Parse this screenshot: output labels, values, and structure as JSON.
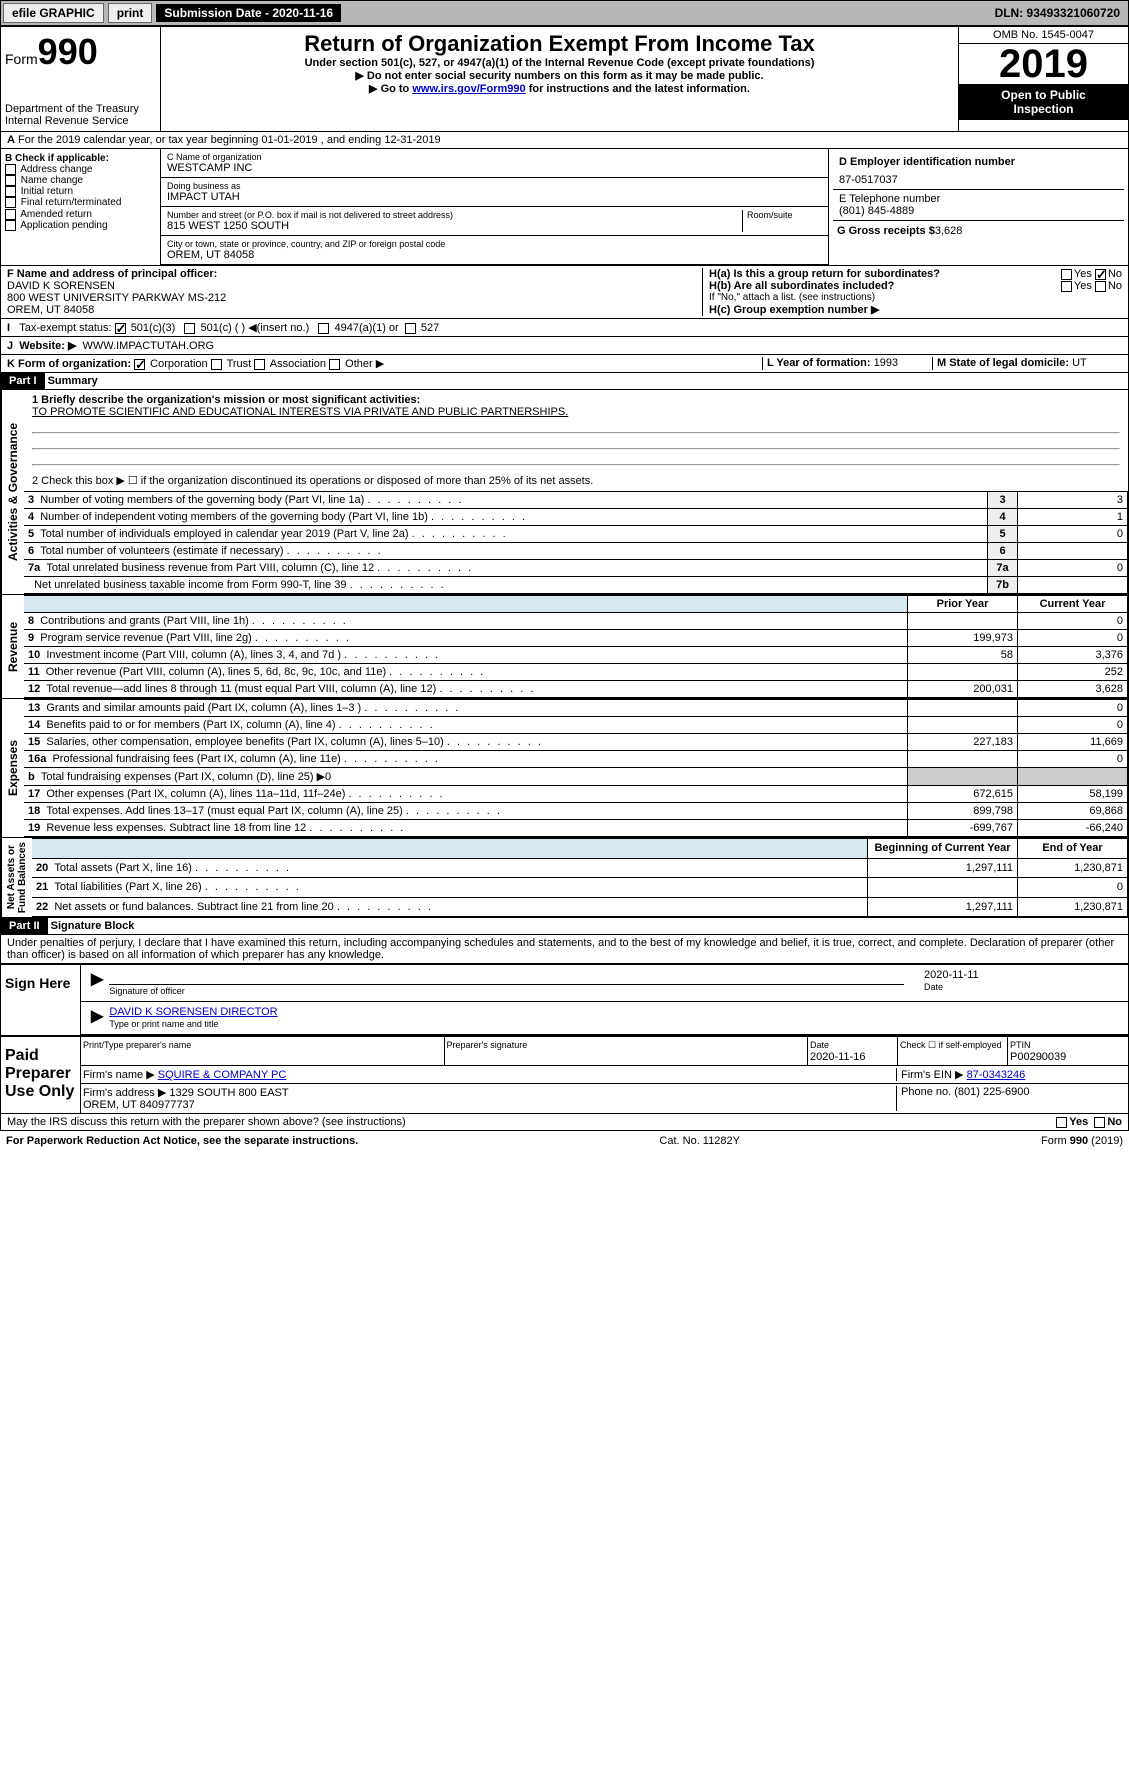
{
  "topbar": {
    "efile": "efile GRAPHIC",
    "print": "print",
    "subdate_label": "Submission Date - 2020-11-16",
    "dln": "DLN: 93493321060720"
  },
  "header": {
    "form": "Form",
    "num": "990",
    "dept": "Department of the Treasury\nInternal Revenue Service",
    "title": "Return of Organization Exempt From Income Tax",
    "sub1": "Under section 501(c), 527, or 4947(a)(1) of the Internal Revenue Code (except private foundations)",
    "sub2": "▶ Do not enter social security numbers on this form as it may be made public.",
    "sub3": "▶ Go to www.irs.gov/Form990 for instructions and the latest information.",
    "omb": "OMB No. 1545-0047",
    "year": "2019",
    "open": "Open to Public",
    "insp": "Inspection"
  },
  "A": {
    "text": "For the 2019 calendar year, or tax year beginning 01-01-2019   , and ending 12-31-2019"
  },
  "B": {
    "label": "B Check if applicable:",
    "items": [
      "Address change",
      "Name change",
      "Initial return",
      "Final return/terminated",
      "Amended return",
      "Application pending"
    ]
  },
  "C": {
    "name_label": "C Name of organization",
    "name": "WESTCAMP INC",
    "dba_label": "Doing business as",
    "dba": "IMPACT UTAH",
    "street_label": "Number and street (or P.O. box if mail is not delivered to street address)",
    "room": "Room/suite",
    "street": "815 WEST 1250 SOUTH",
    "city_label": "City or town, state or province, country, and ZIP or foreign postal code",
    "city": "OREM, UT  84058"
  },
  "D": {
    "label": "D Employer identification number",
    "val": "87-0517037"
  },
  "E": {
    "label": "E Telephone number",
    "val": "(801) 845-4889"
  },
  "G": {
    "label": "G Gross receipts $",
    "val": "3,628"
  },
  "F": {
    "label": "F  Name and address of principal officer:",
    "val": "DAVID K SORENSEN\n800 WEST UNIVERSITY PARKWAY MS-212\nOREM, UT  84058"
  },
  "H": {
    "a": "H(a)  Is this a group return for subordinates?",
    "b": "H(b)  Are all subordinates included?",
    "note": "If \"No,\" attach a list. (see instructions)",
    "c": "H(c)  Group exemption number ▶",
    "yes": "Yes",
    "no": "No"
  },
  "I": {
    "label": "Tax-exempt status:",
    "c3": "501(c)(3)",
    "c": "501(c) ( ) ◀(insert no.)",
    "a1": "4947(a)(1) or",
    "s527": "527"
  },
  "J": {
    "label": "Website: ▶",
    "val": "WWW.IMPACTUTAH.ORG"
  },
  "K": {
    "label": "K Form of organization:",
    "corp": "Corporation",
    "trust": "Trust",
    "assoc": "Association",
    "other": "Other ▶"
  },
  "L": {
    "label": "L Year of formation:",
    "val": "1993"
  },
  "M": {
    "label": "M State of legal domicile:",
    "val": "UT"
  },
  "partI": {
    "hdr": "Part I",
    "title": "Summary"
  },
  "summary": {
    "l1": {
      "label": "1  Briefly describe the organization's mission or most significant activities:",
      "val": "TO PROMOTE SCIENTIFIC AND EDUCATIONAL INTERESTS VIA PRIVATE AND PUBLIC PARTNERSHIPS."
    },
    "l2": "2   Check this box ▶ ☐  if the organization discontinued its operations or disposed of more than 25% of its net assets.",
    "rows": [
      {
        "n": "3",
        "t": "Number of voting members of the governing body (Part VI, line 1a)",
        "c": "3",
        "v": "3"
      },
      {
        "n": "4",
        "t": "Number of independent voting members of the governing body (Part VI, line 1b)",
        "c": "4",
        "v": "1"
      },
      {
        "n": "5",
        "t": "Total number of individuals employed in calendar year 2019 (Part V, line 2a)",
        "c": "5",
        "v": "0"
      },
      {
        "n": "6",
        "t": "Total number of volunteers (estimate if necessary)",
        "c": "6",
        "v": ""
      },
      {
        "n": "7a",
        "t": "Total unrelated business revenue from Part VIII, column (C), line 12",
        "c": "7a",
        "v": "0"
      },
      {
        "n": "",
        "t": "Net unrelated business taxable income from Form 990-T, line 39",
        "c": "7b",
        "v": ""
      }
    ],
    "hdr_prior": "Prior Year",
    "hdr_curr": "Current Year",
    "rev": [
      {
        "n": "8",
        "t": "Contributions and grants (Part VIII, line 1h)",
        "p": "",
        "c": "0"
      },
      {
        "n": "9",
        "t": "Program service revenue (Part VIII, line 2g)",
        "p": "199,973",
        "c": "0"
      },
      {
        "n": "10",
        "t": "Investment income (Part VIII, column (A), lines 3, 4, and 7d )",
        "p": "58",
        "c": "3,376"
      },
      {
        "n": "11",
        "t": "Other revenue (Part VIII, column (A), lines 5, 6d, 8c, 9c, 10c, and 11e)",
        "p": "",
        "c": "252"
      },
      {
        "n": "12",
        "t": "Total revenue—add lines 8 through 11 (must equal Part VIII, column (A), line 12)",
        "p": "200,031",
        "c": "3,628"
      }
    ],
    "exp": [
      {
        "n": "13",
        "t": "Grants and similar amounts paid (Part IX, column (A), lines 1–3 )",
        "p": "",
        "c": "0"
      },
      {
        "n": "14",
        "t": "Benefits paid to or for members (Part IX, column (A), line 4)",
        "p": "",
        "c": "0"
      },
      {
        "n": "15",
        "t": "Salaries, other compensation, employee benefits (Part IX, column (A), lines 5–10)",
        "p": "227,183",
        "c": "11,669"
      },
      {
        "n": "16a",
        "t": "Professional fundraising fees (Part IX, column (A), line 11e)",
        "p": "",
        "c": "0"
      },
      {
        "n": "b",
        "t": "Total fundraising expenses (Part IX, column (D), line 25) ▶0",
        "p": "-",
        "c": "-"
      },
      {
        "n": "17",
        "t": "Other expenses (Part IX, column (A), lines 11a–11d, 11f–24e)",
        "p": "672,615",
        "c": "58,199"
      },
      {
        "n": "18",
        "t": "Total expenses. Add lines 13–17 (must equal Part IX, column (A), line 25)",
        "p": "899,798",
        "c": "69,868"
      },
      {
        "n": "19",
        "t": "Revenue less expenses. Subtract line 18 from line 12",
        "p": "-699,767",
        "c": "-66,240"
      }
    ],
    "hdr_beg": "Beginning of Current Year",
    "hdr_end": "End of Year",
    "net": [
      {
        "n": "20",
        "t": "Total assets (Part X, line 16)",
        "p": "1,297,111",
        "c": "1,230,871"
      },
      {
        "n": "21",
        "t": "Total liabilities (Part X, line 26)",
        "p": "",
        "c": "0"
      },
      {
        "n": "22",
        "t": "Net assets or fund balances. Subtract line 21 from line 20",
        "p": "1,297,111",
        "c": "1,230,871"
      }
    ],
    "sections": {
      "gov": "Activities & Governance",
      "rev": "Revenue",
      "exp": "Expenses",
      "net": "Net Assets or\nFund Balances"
    }
  },
  "partII": {
    "hdr": "Part II",
    "title": "Signature Block",
    "perjury": "Under penalties of perjury, I declare that I have examined this return, including accompanying schedules and statements, and to the best of my knowledge and belief, it is true, correct, and complete. Declaration of preparer (other than officer) is based on all information of which preparer has any knowledge."
  },
  "sign": {
    "here": "Sign Here",
    "sig_label": "Signature of officer",
    "date_label": "Date",
    "date": "2020-11-11",
    "name": "DAVID K SORENSEN  DIRECTOR",
    "name_label": "Type or print name and title"
  },
  "paid": {
    "label": "Paid Preparer Use Only",
    "h1": "Print/Type preparer's name",
    "h2": "Preparer's signature",
    "h3": "Date",
    "h3v": "2020-11-16",
    "h4": "Check ☐ if self-employed",
    "h5": "PTIN",
    "h5v": "P00290039",
    "firm_label": "Firm's name   ▶",
    "firm": "SQUIRE & COMPANY PC",
    "ein_label": "Firm's EIN ▶",
    "ein": "87-0343246",
    "addr_label": "Firm's address ▶",
    "addr": "1329 SOUTH 800 EAST\nOREM, UT  840977737",
    "phone_label": "Phone no.",
    "phone": "(801) 225-6900"
  },
  "discuss": "May the IRS discuss this return with the preparer shown above? (see instructions)",
  "footer": {
    "l": "For Paperwork Reduction Act Notice, see the separate instructions.",
    "c": "Cat. No. 11282Y",
    "r": "Form 990 (2019)"
  }
}
